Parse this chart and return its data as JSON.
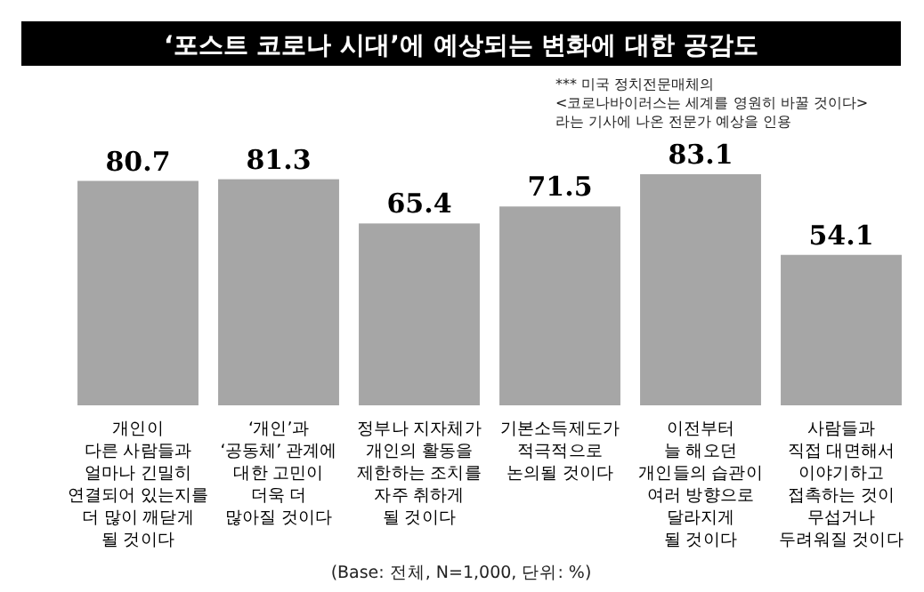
{
  "chart_data": {
    "type": "bar",
    "title": "‘포스트 코로나 시대’에 예상되는 변화에 대한 공감도",
    "categories": [
      "개인이\n다른 사람들과\n얼마나 긴밀히\n연결되어 있는지를\n더 많이 깨닫게\n될 것이다",
      "‘개인’과\n‘공동체’ 관계에\n대한 고민이\n더욱 더\n많아질 것이다",
      "정부나 지자체가\n개인의 활동을\n제한하는 조치를\n자주 취하게\n될 것이다",
      "기본소득제도가\n적극적으로\n논의될 것이다",
      "이전부터\n늘 해오던\n개인들의 습관이\n여러 방향으로\n달라지게\n될 것이다",
      "사람들과\n직접 대면해서\n이야기하고\n접촉하는 것이\n무섭거나\n두려워질 것이다"
    ],
    "values": [
      80.7,
      81.3,
      65.4,
      71.5,
      83.1,
      54.1
    ],
    "color": "#a6a6a6",
    "data_labels": true,
    "annotations": [
      "*** 미국 정치전문매체의\n<코로나바이러스는 세계를 영원히 바꿀 것이다>\n라는 기사에 나온 전문가 예상을 인용",
      "(Base: 전체, N=1,000, 단위: %)"
    ]
  }
}
